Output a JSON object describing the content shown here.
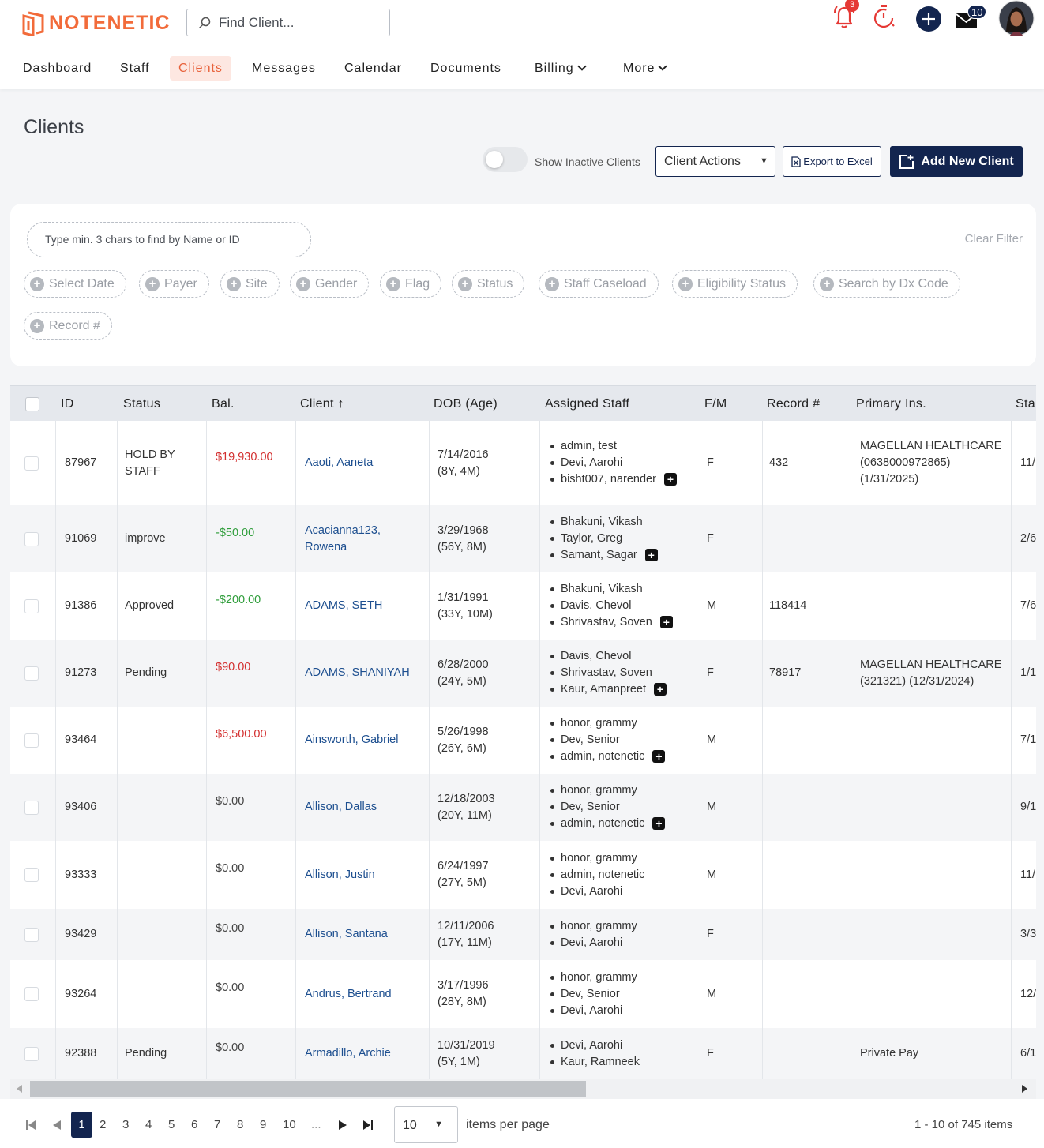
{
  "app": {
    "logo_text": "NOTENETIC"
  },
  "search": {
    "placeholder": "Find Client..."
  },
  "topbar": {
    "notifications_count": "3",
    "messages_count": "10"
  },
  "nav": {
    "items": [
      "Dashboard",
      "Staff",
      "Clients",
      "Messages",
      "Calendar",
      "Documents",
      "Billing",
      "More"
    ],
    "active": "Clients"
  },
  "page": {
    "title": "Clients"
  },
  "toolbar": {
    "show_inactive_label": "Show Inactive Clients",
    "client_actions_label": "Client Actions",
    "export_label": "Export to Excel",
    "add_client_label": "Add New Client"
  },
  "filters": {
    "search_placeholder": "Type min. 3 chars to find by Name or ID",
    "clear_filter_label": "Clear Filter",
    "chips": [
      "Select Date",
      "Payer",
      "Site",
      "Gender",
      "Flag",
      "Status",
      "Staff Caseload",
      "Eligibility Status",
      "Search by Dx Code",
      "Record #"
    ]
  },
  "table": {
    "columns": [
      "ID",
      "Status",
      "Bal.",
      "Client ↑",
      "DOB (Age)",
      "Assigned Staff",
      "F/M",
      "Record #",
      "Primary Ins.",
      "Sta"
    ],
    "rows": [
      {
        "id": "87967",
        "status": "HOLD BY STAFF",
        "bal": "$19,930.00",
        "bal_type": "neg",
        "client": "Aaoti, Aaneta",
        "dob": "7/14/2016",
        "age": "(8Y, 4M)",
        "staff": [
          "admin, test",
          "Devi, Aarohi",
          "bisht007, narender"
        ],
        "more_staff": true,
        "gender": "F",
        "record": "432",
        "ins": "MAGELLAN HEALTHCARE (0638000972865) (1/31/2025)",
        "start": "11/"
      },
      {
        "id": "91069",
        "status": "improve",
        "bal": "-$50.00",
        "bal_type": "pos",
        "client": "Acacianna123, Rowena",
        "dob": "3/29/1968",
        "age": "(56Y, 8M)",
        "staff": [
          "Bhakuni, Vikash",
          "Taylor, Greg",
          "Samant, Sagar"
        ],
        "more_staff": true,
        "gender": "F",
        "record": "",
        "ins": "",
        "start": "2/6"
      },
      {
        "id": "91386",
        "status": "Approved",
        "bal": "-$200.00",
        "bal_type": "pos",
        "client": "ADAMS, SETH",
        "dob": "1/31/1991",
        "age": "(33Y, 10M)",
        "staff": [
          "Bhakuni, Vikash",
          "Davis, Chevol",
          "Shrivastav, Soven"
        ],
        "more_staff": true,
        "gender": "M",
        "record": "118414",
        "ins": "",
        "start": "7/6"
      },
      {
        "id": "91273",
        "status": "Pending",
        "bal": "$90.00",
        "bal_type": "neg",
        "client": "ADAMS, SHANIYAH",
        "dob": "6/28/2000",
        "age": "(24Y, 5M)",
        "staff": [
          "Davis, Chevol",
          "Shrivastav, Soven",
          "Kaur, Amanpreet"
        ],
        "more_staff": true,
        "gender": "F",
        "record": "78917",
        "ins": "MAGELLAN HEALTHCARE (321321) (12/31/2024)",
        "start": "1/1."
      },
      {
        "id": "93464",
        "status": "",
        "bal": "$6,500.00",
        "bal_type": "neg",
        "client": "Ainsworth, Gabriel",
        "dob": "5/26/1998",
        "age": "(26Y, 6M)",
        "staff": [
          "honor, grammy",
          "Dev, Senior",
          "admin, notenetic"
        ],
        "more_staff": true,
        "gender": "M",
        "record": "",
        "ins": "",
        "start": "7/1"
      },
      {
        "id": "93406",
        "status": "",
        "bal": "$0.00",
        "bal_type": "zero",
        "client": "Allison, Dallas",
        "dob": "12/18/2003",
        "age": "(20Y, 11M)",
        "staff": [
          "honor, grammy",
          "Dev, Senior",
          "admin, notenetic"
        ],
        "more_staff": true,
        "gender": "M",
        "record": "",
        "ins": "",
        "start": "9/1"
      },
      {
        "id": "93333",
        "status": "",
        "bal": "$0.00",
        "bal_type": "zero",
        "client": "Allison, Justin",
        "dob": "6/24/1997",
        "age": "(27Y, 5M)",
        "staff": [
          "honor, grammy",
          "admin, notenetic",
          "Devi, Aarohi"
        ],
        "more_staff": false,
        "gender": "M",
        "record": "",
        "ins": "",
        "start": "11/"
      },
      {
        "id": "93429",
        "status": "",
        "bal": "$0.00",
        "bal_type": "zero",
        "client": "Allison, Santana",
        "dob": "12/11/2006",
        "age": "(17Y, 11M)",
        "staff": [
          "honor, grammy",
          "Devi, Aarohi"
        ],
        "more_staff": false,
        "gender": "F",
        "record": "",
        "ins": "",
        "start": "3/3"
      },
      {
        "id": "93264",
        "status": "",
        "bal": "$0.00",
        "bal_type": "zero",
        "client": "Andrus, Bertrand",
        "dob": "3/17/1996",
        "age": "(28Y, 8M)",
        "staff": [
          "honor, grammy",
          "Dev, Senior",
          "Devi, Aarohi"
        ],
        "more_staff": false,
        "gender": "M",
        "record": "",
        "ins": "",
        "start": "12/"
      },
      {
        "id": "92388",
        "status": "Pending",
        "bal": "$0.00",
        "bal_type": "zero",
        "client": "Armadillo, Archie",
        "dob": "10/31/2019",
        "age": "(5Y, 1M)",
        "staff": [
          "Devi, Aarohi",
          "Kaur, Ramneek"
        ],
        "more_staff": false,
        "gender": "F",
        "record": "",
        "ins": "Private Pay",
        "start": "6/1"
      }
    ]
  },
  "pagination": {
    "pages": [
      "1",
      "2",
      "3",
      "4",
      "5",
      "6",
      "7",
      "8",
      "9",
      "10",
      "..."
    ],
    "current": "1",
    "per_page": "10",
    "per_page_label": "items per page",
    "summary": "1 - 10 of 745 items"
  }
}
